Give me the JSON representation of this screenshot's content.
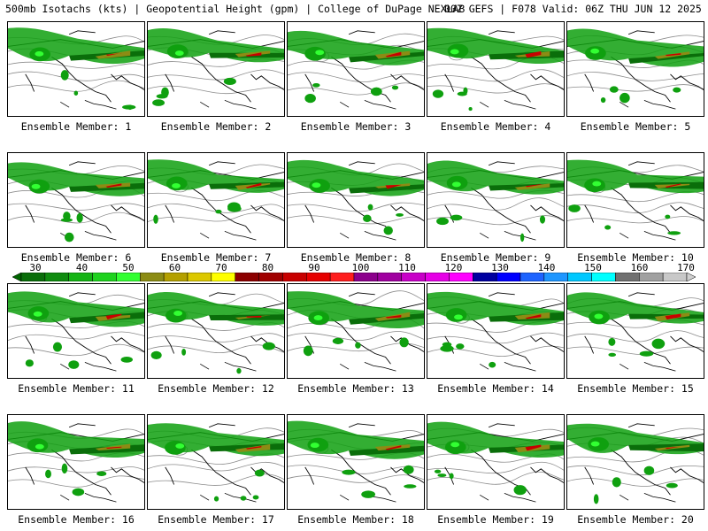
{
  "header": {
    "left": "500mb Isotachs (kts) | Geopotential Height (gpm) | College of DuPage NEXLAB",
    "right": "00Z GEFS | F078 Valid: 06Z THU JUN 12 2025"
  },
  "members": [
    "Ensemble Member: 1",
    "Ensemble Member: 2",
    "Ensemble Member: 3",
    "Ensemble Member: 4",
    "Ensemble Member: 5",
    "Ensemble Member: 6",
    "Ensemble Member: 7",
    "Ensemble Member: 8",
    "Ensemble Member: 9",
    "Ensemble Member: 10",
    "Ensemble Member: 11",
    "Ensemble Member: 12",
    "Ensemble Member: 13",
    "Ensemble Member: 14",
    "Ensemble Member: 15",
    "Ensemble Member: 16",
    "Ensemble Member: 17",
    "Ensemble Member: 18",
    "Ensemble Member: 19",
    "Ensemble Member: 20"
  ],
  "colorbar": {
    "labels": [
      "30",
      "40",
      "50",
      "60",
      "70",
      "80",
      "90",
      "100",
      "110",
      "120",
      "130",
      "140",
      "150",
      "160",
      "170"
    ],
    "colors": [
      "#0a6e0a",
      "#0f8c0f",
      "#14b414",
      "#1ed21e",
      "#32ff32",
      "#8c8c14",
      "#b4a000",
      "#dcc800",
      "#ffff00",
      "#8c0000",
      "#a00000",
      "#c80000",
      "#e60000",
      "#ff1e1e",
      "#8c008c",
      "#a000a0",
      "#c800c8",
      "#e600e6",
      "#ff00ff",
      "#0000a0",
      "#0000ff",
      "#1e64ff",
      "#1e96ff",
      "#00c8ff",
      "#00ffff",
      "#707070",
      "#a0a0a0",
      "#c8c8c8"
    ]
  },
  "colors": {
    "jet_green": "#0fa00f",
    "jet_dark": "#0a6e0a",
    "jet_core": "#8c8c14",
    "jet_red": "#c80000",
    "contour": "#8c8c8c"
  }
}
